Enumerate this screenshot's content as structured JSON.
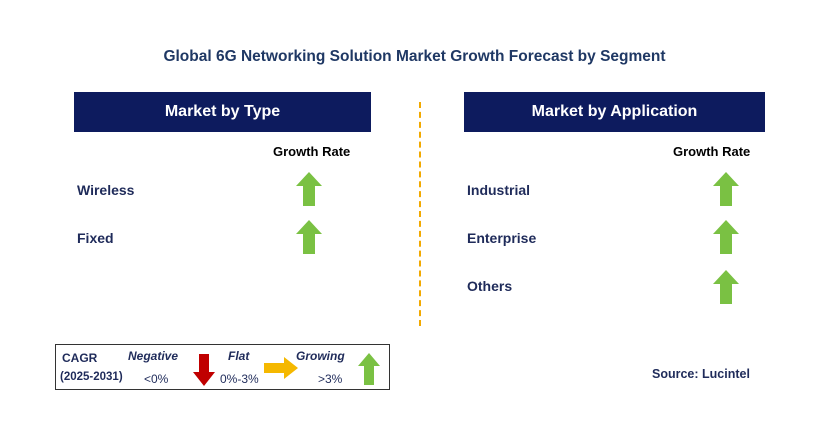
{
  "title": "Global 6G Networking Solution Market Growth Forecast by Segment",
  "left_panel": {
    "header": "Market by Type",
    "growth_rate_label": "Growth Rate",
    "items": [
      {
        "label": "Wireless",
        "trend": "growing"
      },
      {
        "label": "Fixed",
        "trend": "growing"
      }
    ]
  },
  "right_panel": {
    "header": "Market by Application",
    "growth_rate_label": "Growth Rate",
    "items": [
      {
        "label": "Industrial",
        "trend": "growing"
      },
      {
        "label": "Enterprise",
        "trend": "growing"
      },
      {
        "label": "Others",
        "trend": "growing"
      }
    ]
  },
  "legend": {
    "cagr_label": "CAGR",
    "period": "(2025-2031)",
    "negative_label": "Negative",
    "negative_range": "<0%",
    "flat_label": "Flat",
    "flat_range": "0%-3%",
    "growing_label": "Growing",
    "growing_range": ">3%"
  },
  "source": "Source: Lucintel",
  "colors": {
    "header_bg": "#0d1b5e",
    "title_text": "#1f3864",
    "growing_arrow": "#7ac143",
    "negative_arrow": "#c00000",
    "flat_arrow": "#f5b800",
    "divider": "#f2a900"
  }
}
